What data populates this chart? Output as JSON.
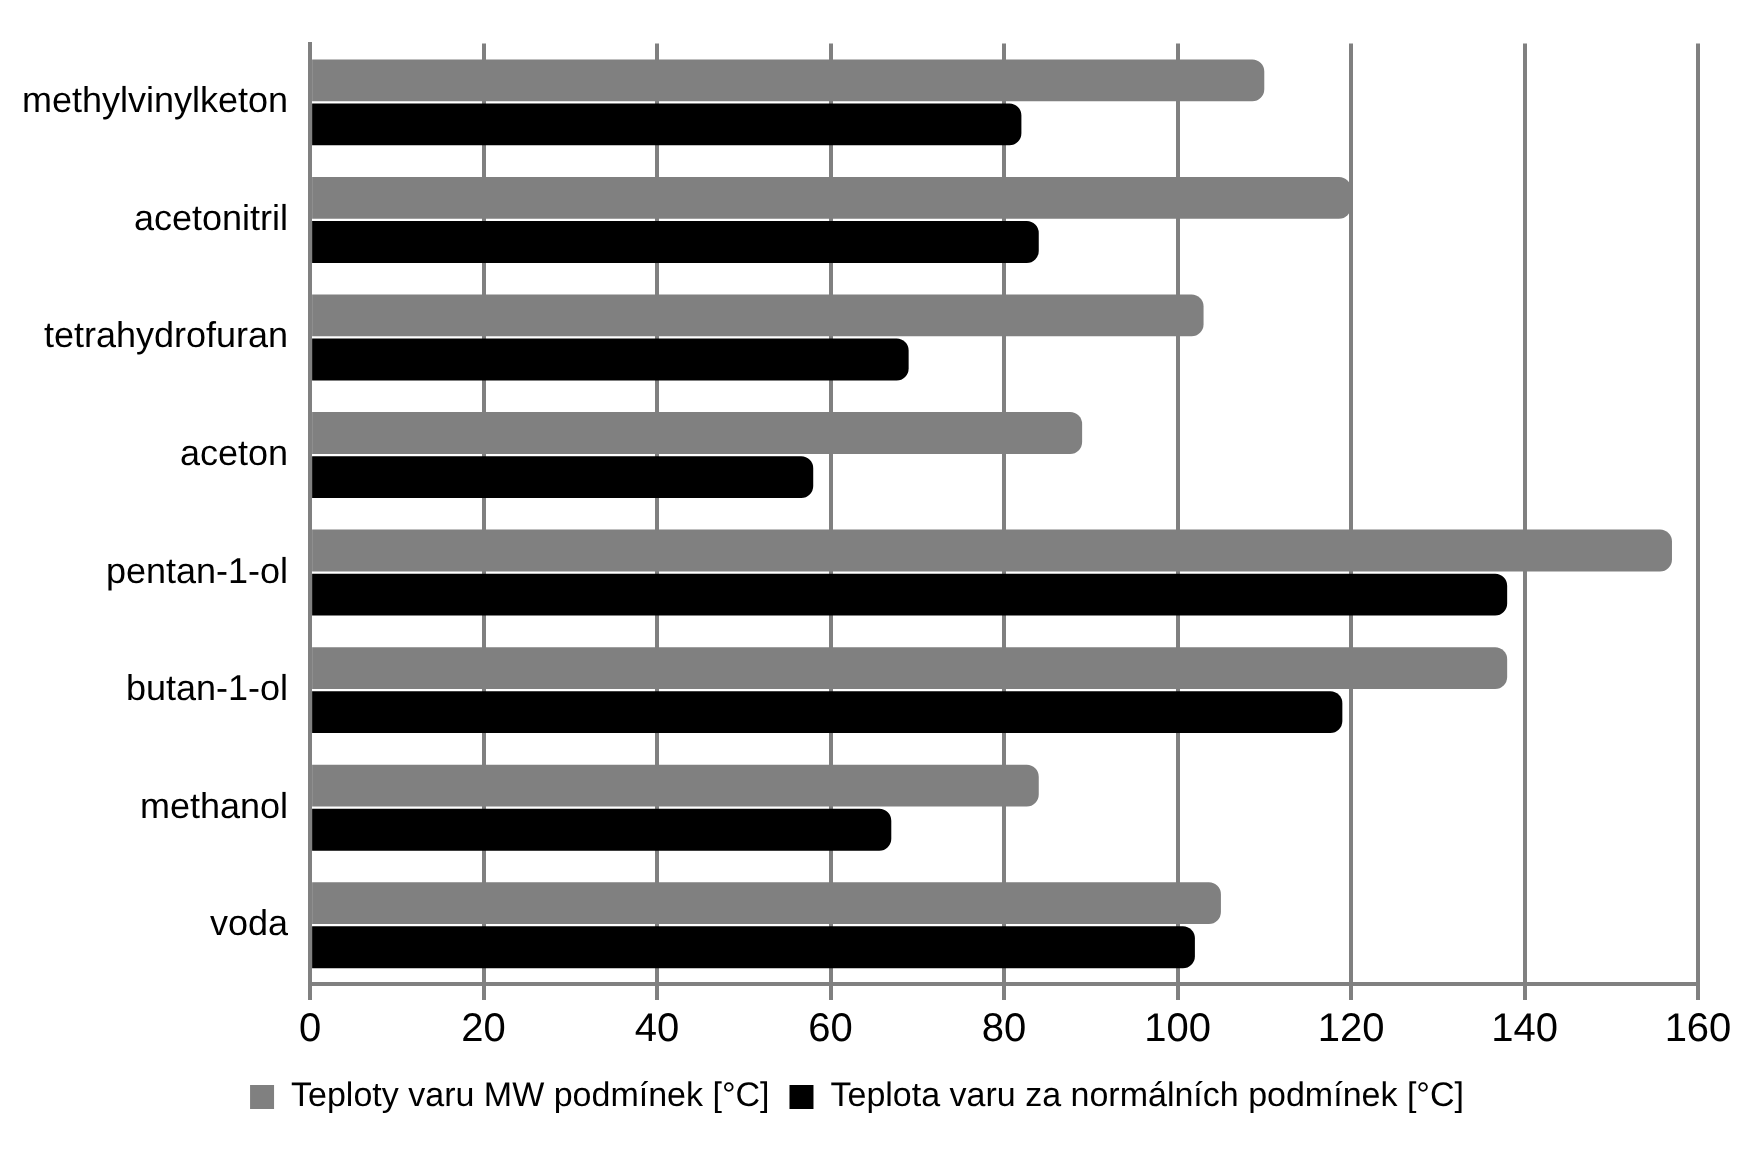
{
  "chart_data": {
    "type": "bar",
    "orientation": "horizontal",
    "categories": [
      "methylvinylketon",
      "acetonitril",
      "tetrahydrofuran",
      "aceton",
      "pentan-1-ol",
      "butan-1-ol",
      "methanol",
      "voda"
    ],
    "series": [
      {
        "name": "Teploty varu MW podmínek [°C]",
        "color": "#808080",
        "values": [
          110,
          120,
          103,
          89,
          157,
          138,
          84,
          105
        ]
      },
      {
        "name": "Teplota varu za normálních podmínek [°C]",
        "color": "#000000",
        "values": [
          82,
          84,
          69,
          58,
          138,
          119,
          67,
          102
        ]
      }
    ],
    "xlim": [
      0,
      160
    ],
    "xticks": [
      0,
      20,
      40,
      60,
      80,
      100,
      120,
      140,
      160
    ],
    "grid": "x",
    "legend": "bottom"
  }
}
